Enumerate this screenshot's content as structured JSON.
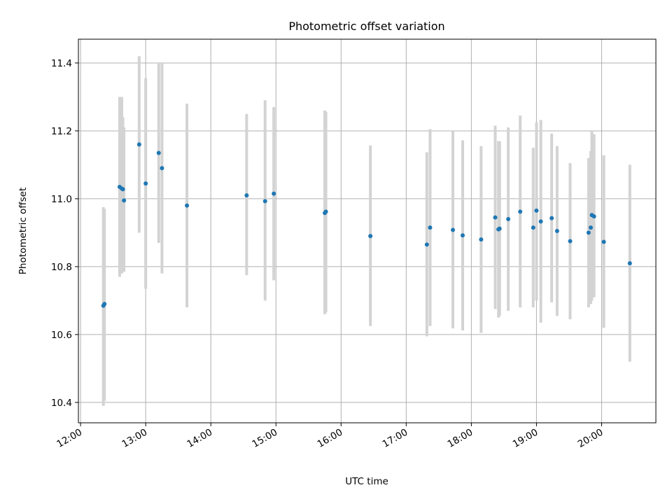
{
  "chart_data": {
    "type": "scatter",
    "title": "Photometric offset variation",
    "xlabel": "UTC time",
    "ylabel": "Photometric offset",
    "xlim": [
      "11:58",
      "20:50"
    ],
    "ylim": [
      10.34,
      11.47
    ],
    "x_ticks": [
      "12:00",
      "13:00",
      "14:00",
      "15:00",
      "16:00",
      "17:00",
      "18:00",
      "19:00",
      "20:00"
    ],
    "y_ticks": [
      10.4,
      10.6,
      10.8,
      11.0,
      11.2,
      11.4
    ],
    "y_tick_labels": [
      "10.4",
      "10.6",
      "10.8",
      "11.0",
      "11.2",
      "11.4"
    ],
    "grid": true,
    "colors": {
      "point": "#1f77b4",
      "errorbar": "#d3d3d3",
      "grid": "#b0b0b0"
    },
    "series": [
      {
        "points": [
          {
            "t": "12:21",
            "y": 10.685,
            "lo": 10.39,
            "hi": 10.975
          },
          {
            "t": "12:22",
            "y": 10.69,
            "lo": 10.405,
            "hi": 10.97
          },
          {
            "t": "12:36",
            "y": 11.035,
            "lo": 10.77,
            "hi": 11.3
          },
          {
            "t": "12:38",
            "y": 11.03,
            "lo": 10.78,
            "hi": 11.3
          },
          {
            "t": "12:39",
            "y": 11.028,
            "lo": 10.79,
            "hi": 11.24
          },
          {
            "t": "12:40",
            "y": 10.995,
            "lo": 10.785,
            "hi": 11.21
          },
          {
            "t": "12:54",
            "y": 11.16,
            "lo": 10.9,
            "hi": 11.42
          },
          {
            "t": "13:00",
            "y": 11.045,
            "lo": 10.735,
            "hi": 11.355
          },
          {
            "t": "13:12",
            "y": 11.135,
            "lo": 10.87,
            "hi": 11.4
          },
          {
            "t": "13:15",
            "y": 11.09,
            "lo": 10.78,
            "hi": 11.4
          },
          {
            "t": "13:38",
            "y": 10.98,
            "lo": 10.68,
            "hi": 11.28
          },
          {
            "t": "14:33",
            "y": 11.01,
            "lo": 10.775,
            "hi": 11.25
          },
          {
            "t": "14:50",
            "y": 10.993,
            "lo": 10.7,
            "hi": 11.29
          },
          {
            "t": "14:58",
            "y": 11.015,
            "lo": 10.76,
            "hi": 11.27
          },
          {
            "t": "15:45",
            "y": 10.958,
            "lo": 10.66,
            "hi": 11.26
          },
          {
            "t": "15:46",
            "y": 10.962,
            "lo": 10.665,
            "hi": 11.255
          },
          {
            "t": "16:27",
            "y": 10.89,
            "lo": 10.625,
            "hi": 11.157
          },
          {
            "t": "17:19",
            "y": 10.865,
            "lo": 10.595,
            "hi": 11.137
          },
          {
            "t": "17:22",
            "y": 10.915,
            "lo": 10.625,
            "hi": 11.205
          },
          {
            "t": "17:43",
            "y": 10.908,
            "lo": 10.618,
            "hi": 11.198
          },
          {
            "t": "17:52",
            "y": 10.892,
            "lo": 10.612,
            "hi": 11.172
          },
          {
            "t": "18:09",
            "y": 10.88,
            "lo": 10.605,
            "hi": 11.155
          },
          {
            "t": "18:22",
            "y": 10.945,
            "lo": 10.675,
            "hi": 11.215
          },
          {
            "t": "18:25",
            "y": 10.91,
            "lo": 10.65,
            "hi": 11.17
          },
          {
            "t": "18:26",
            "y": 10.912,
            "lo": 10.655,
            "hi": 11.169
          },
          {
            "t": "18:34",
            "y": 10.94,
            "lo": 10.67,
            "hi": 11.21
          },
          {
            "t": "18:45",
            "y": 10.962,
            "lo": 10.68,
            "hi": 11.245
          },
          {
            "t": "18:57",
            "y": 10.915,
            "lo": 10.68,
            "hi": 11.15
          },
          {
            "t": "19:00",
            "y": 10.965,
            "lo": 10.7,
            "hi": 11.225
          },
          {
            "t": "19:04",
            "y": 10.933,
            "lo": 10.635,
            "hi": 11.232
          },
          {
            "t": "19:14",
            "y": 10.943,
            "lo": 10.695,
            "hi": 11.192
          },
          {
            "t": "19:19",
            "y": 10.905,
            "lo": 10.655,
            "hi": 11.155
          },
          {
            "t": "19:31",
            "y": 10.875,
            "lo": 10.645,
            "hi": 11.105
          },
          {
            "t": "19:48",
            "y": 10.9,
            "lo": 10.68,
            "hi": 11.12
          },
          {
            "t": "19:50",
            "y": 10.915,
            "lo": 10.69,
            "hi": 11.14
          },
          {
            "t": "19:51",
            "y": 10.952,
            "lo": 10.7,
            "hi": 11.2
          },
          {
            "t": "19:53",
            "y": 10.948,
            "lo": 10.71,
            "hi": 11.19
          },
          {
            "t": "20:02",
            "y": 10.873,
            "lo": 10.62,
            "hi": 11.128
          },
          {
            "t": "20:26",
            "y": 10.81,
            "lo": 10.52,
            "hi": 11.1
          }
        ]
      }
    ]
  }
}
